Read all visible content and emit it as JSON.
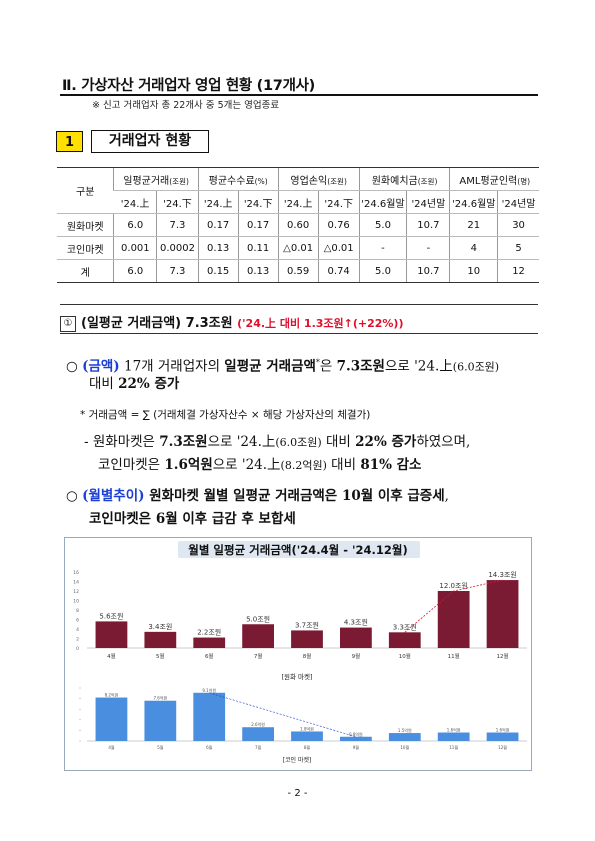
{
  "section": {
    "title": "Ⅱ. 가상자산 거래업자 영업 현황 (17개사)",
    "note": "※ 신고 거래업자 총 22개사 중 5개는 영업종료"
  },
  "subsection1": {
    "number": "1",
    "title": "거래업자 현황"
  },
  "table": {
    "corner": "구분",
    "groups": [
      "일평균거래",
      "(조원)",
      "평균수수료",
      "(%)",
      "영업손익",
      "(조원)",
      "원화예치금",
      "(조원)",
      "AML평균인력",
      "(명)"
    ],
    "periods": [
      "'24.上",
      "'24.下",
      "'24.上",
      "'24.下",
      "'24.上",
      "'24.下",
      "'24.6월말",
      "'24년말",
      "'24.6월말",
      "'24년말"
    ],
    "rows": [
      {
        "label": "원화마켓",
        "cells": [
          "6.0",
          "7.3",
          "0.17",
          "0.17",
          "0.60",
          "0.76",
          "5.0",
          "10.7",
          "21",
          "30"
        ]
      },
      {
        "label": "코인마켓",
        "cells": [
          "0.001",
          "0.0002",
          "0.13",
          "0.11",
          "△0.01",
          "△0.01",
          "-",
          "-",
          "4",
          "5"
        ]
      },
      {
        "label": "계",
        "cells": [
          "6.0",
          "7.3",
          "0.15",
          "0.13",
          "0.59",
          "0.74",
          "5.0",
          "10.7",
          "10",
          "12"
        ]
      }
    ]
  },
  "subsection2": {
    "number": "①",
    "title": "(일평균 거래금액) 7.3조원",
    "highlight": "('24.上 대비 1.3조원↑(+22%))"
  },
  "paragraphs": {
    "p1_bullet": "○",
    "p1_tag": "(금액)",
    "p1_a": " 17개 거래업자의 ",
    "p1_b": "일평균 거래금액",
    "p1_star": "*",
    "p1_c": "은 ",
    "p1_d": "7.3조원",
    "p1_e": "으로 '24.上",
    "p1_f": "(6.0조원)",
    "p1_line2a": "대비 ",
    "p1_line2b": "22% 증가",
    "footnote": "* 거래금액 = ∑ (거래체결 가상자산수 × 해당 가상자산의 체결가)",
    "dash_a": "- 원화마켓은 ",
    "dash_b": "7.3조원",
    "dash_c": "으로 '24.上",
    "dash_d": "(6.0조원)",
    "dash_e": " 대비 ",
    "dash_f": "22% 증가",
    "dash_g": "하였으며,",
    "dash2_a": "코인마켓은 ",
    "dash2_b": "1.6억원",
    "dash2_c": "으로 '24.上",
    "dash2_d": "(8.2억원)",
    "dash2_e": " 대비 ",
    "dash2_f": "81% 감소",
    "p2_bullet": "○",
    "p2_tag": "(월별추이)",
    "p2_a": " 원화마켓 월별 일평균 거래금액은 ",
    "p2_b": "10월 이후 급증세",
    "p2_c": ",",
    "p2_line2a": "코인마켓은 ",
    "p2_line2b": "6월 이후 급감 후 보합세"
  },
  "chart_data": [
    {
      "type": "bar",
      "title": "월별 일평균 거래금액('24.4월 - '24.12월)",
      "categories": [
        "4월",
        "5월",
        "6월",
        "7월",
        "8월",
        "9월",
        "10월",
        "11월",
        "12월"
      ],
      "values": [
        5.6,
        3.4,
        2.2,
        5.0,
        3.7,
        4.3,
        3.3,
        12.0,
        14.3
      ],
      "value_labels": [
        "5.6조원",
        "3.4조원",
        "2.2조원",
        "5.0조원",
        "3.7조원",
        "4.3조원",
        "3.3조원",
        "12.0조원",
        "14.3조원"
      ],
      "yticks": [
        "0",
        "2",
        "4",
        "6",
        "8",
        "10",
        "12",
        "14",
        "16"
      ],
      "ylim": [
        0,
        16
      ],
      "xlabel": "[원화 마켓]",
      "color": "#7a1a33",
      "trend_color": "#e0102a"
    },
    {
      "type": "bar",
      "categories": [
        "4월",
        "5월",
        "6월",
        "7월",
        "8월",
        "9월",
        "10월",
        "11월",
        "12월"
      ],
      "values": [
        8.2,
        7.6,
        9.1,
        2.6,
        1.8,
        0.8,
        1.5,
        1.6,
        1.6
      ],
      "value_labels": [
        "8.2억원",
        "7.6억원",
        "9.1억원",
        "2.6억원",
        "1.8억원",
        "0.8억원",
        "1.5억원",
        "1.6억원",
        "1.6억원"
      ],
      "ylim": [
        0,
        10
      ],
      "xlabel": "[코인 마켓]",
      "color": "#4a8ee0",
      "trend_color": "#1b3fd4"
    }
  ],
  "page_number": "- 2 -"
}
